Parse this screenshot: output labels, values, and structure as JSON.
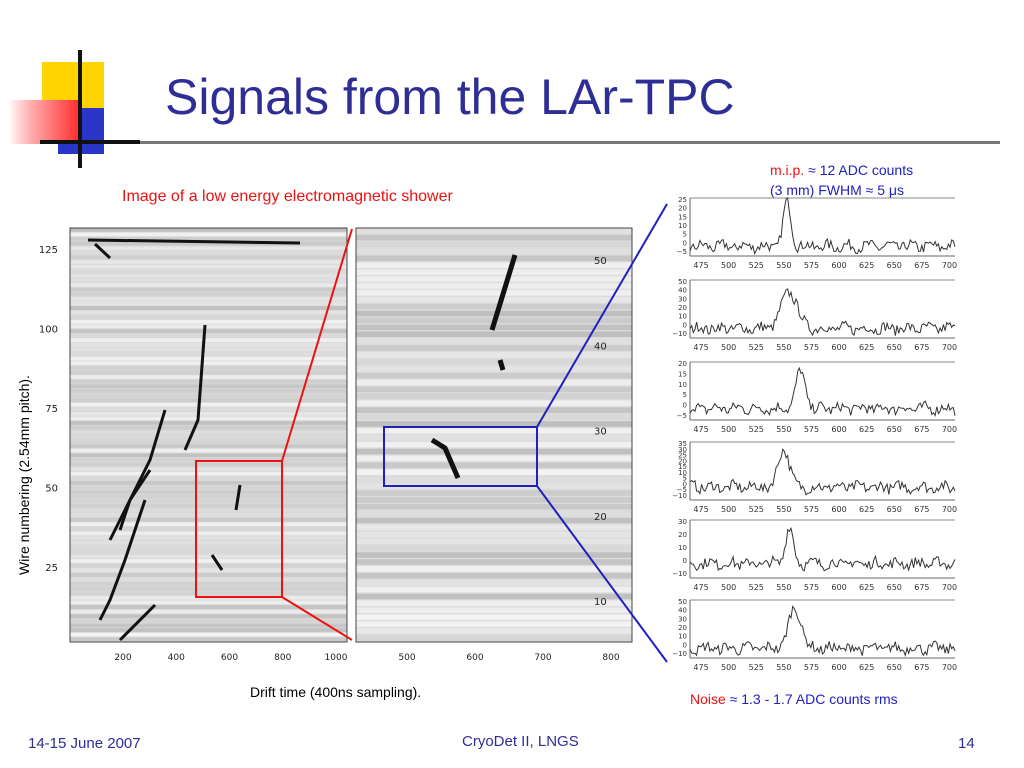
{
  "slide": {
    "title": "Signals from the LAr-TPC",
    "caption_left": "Image of a low energy electromagnetic shower",
    "xlabel": "Drift time (400ns sampling).",
    "ylabel": "Wire numbering (2.54mm pitch).",
    "mip_label": "m.i.p.",
    "mip_value": "≈ 12 ADC counts",
    "fwhm": "(3 mm) FWHM ≈ 5 μs",
    "noise_label": "Noise",
    "noise_value": "≈ 1.3 - 1.7 ADC counts rms"
  },
  "footer": {
    "date": "14-15 June 2007",
    "event": "CryoDet II, LNGS",
    "page": "14"
  },
  "colors": {
    "title": "#2e2e96",
    "red": "#ee1111",
    "blue": "#2020c0"
  },
  "left_panel": {
    "x_ticks": [
      "200",
      "400",
      "600",
      "800",
      "1000"
    ],
    "y_ticks": [
      "125",
      "100",
      "75",
      "50",
      "25"
    ]
  },
  "zoom_panel": {
    "x_ticks": [
      "500",
      "600",
      "700",
      "800"
    ],
    "y_ticks": [
      "50",
      "40",
      "30",
      "20",
      "10"
    ]
  },
  "waveforms": {
    "x_ticks": [
      "475",
      "500",
      "525",
      "550",
      "575",
      "600",
      "625",
      "650",
      "675",
      "700"
    ],
    "panels": [
      {
        "y_ticks": [
          "25",
          "20",
          "15",
          "10",
          "5",
          "0",
          "−5"
        ],
        "ymin": -5,
        "ymax": 25,
        "peak": 23,
        "peak_x": 553,
        "width": 5
      },
      {
        "y_ticks": [
          "50",
          "40",
          "30",
          "20",
          "10",
          "0",
          "−10"
        ],
        "ymin": -10,
        "ymax": 50,
        "peak": 38,
        "peak_x": 555,
        "width": 10
      },
      {
        "y_ticks": [
          "20",
          "15",
          "10",
          "5",
          "0",
          "−5"
        ],
        "ymin": -5,
        "ymax": 20,
        "peak": 16,
        "peak_x": 565,
        "width": 6
      },
      {
        "y_ticks": [
          "35",
          "30",
          "25",
          "20",
          "15",
          "10",
          "5",
          "0",
          "−5",
          "−10"
        ],
        "ymin": -10,
        "ymax": 35,
        "peak": 30,
        "peak_x": 550,
        "width": 7
      },
      {
        "y_ticks": [
          "30",
          "20",
          "10",
          "0",
          "−10"
        ],
        "ymin": -10,
        "ymax": 30,
        "peak": 25,
        "peak_x": 555,
        "width": 5
      },
      {
        "y_ticks": [
          "50",
          "40",
          "30",
          "20",
          "10",
          "0",
          "−10"
        ],
        "ymin": -10,
        "ymax": 50,
        "peak": 42,
        "peak_x": 560,
        "width": 8
      }
    ]
  }
}
